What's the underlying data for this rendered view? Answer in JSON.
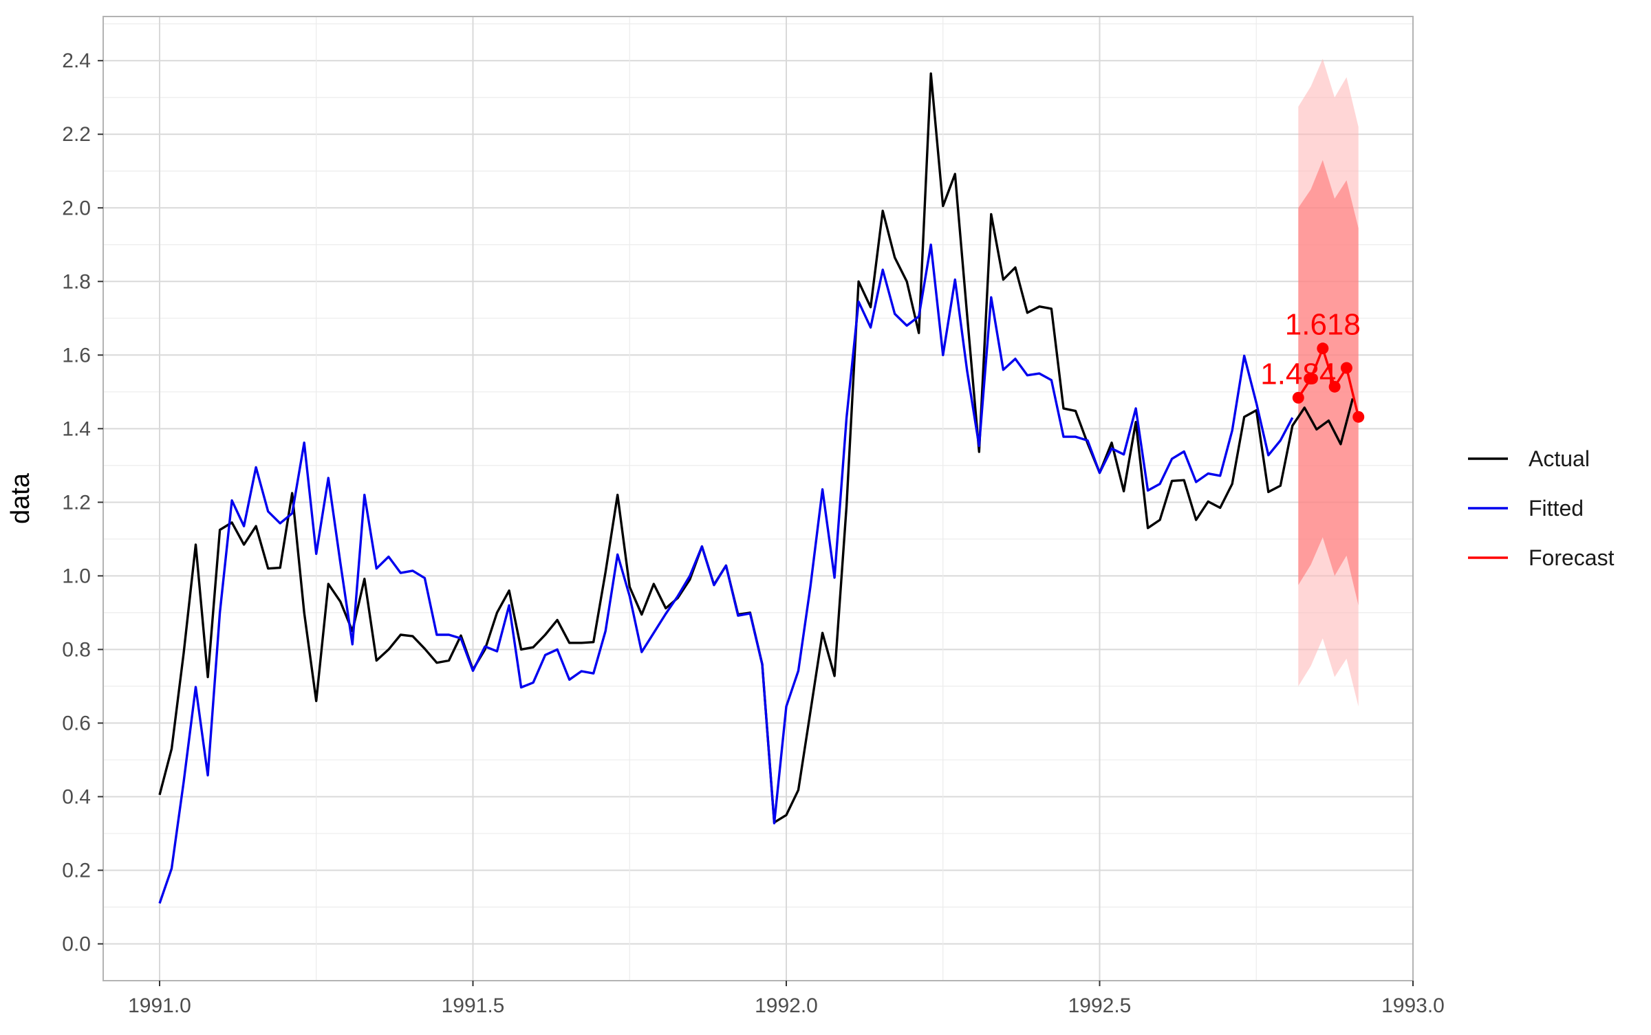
{
  "chart_data": {
    "type": "line",
    "title": "",
    "xlabel": "",
    "ylabel": "data",
    "xlim": [
      1990.91,
      1993.0
    ],
    "ylim": [
      -0.1,
      2.52
    ],
    "x_ticks": [
      1991.0,
      1991.5,
      1992.0,
      1992.5,
      1993.0
    ],
    "x_tick_labels": [
      "1991.0",
      "1991.5",
      "1992.0",
      "1992.5",
      "1993.0"
    ],
    "y_ticks": [
      0.0,
      0.2,
      0.4,
      0.6,
      0.8,
      1.0,
      1.2,
      1.4,
      1.6,
      1.8,
      2.0,
      2.2,
      2.4
    ],
    "y_tick_labels": [
      "0.0",
      "0.2",
      "0.4",
      "0.6",
      "0.8",
      "1.0",
      "1.2",
      "1.4",
      "1.6",
      "1.8",
      "2.0",
      "2.2",
      "2.4"
    ],
    "grid": true,
    "legend_position": "right",
    "x_start": 1991.0,
    "x_step": 0.019231,
    "series": [
      {
        "name": "Actual",
        "color": "#000000",
        "values": [
          0.405,
          0.53,
          0.79,
          1.085,
          0.725,
          1.125,
          1.145,
          1.085,
          1.135,
          1.02,
          1.022,
          1.225,
          0.9,
          0.66,
          0.978,
          0.93,
          0.85,
          0.992,
          0.77,
          0.8,
          0.84,
          0.836,
          0.802,
          0.764,
          0.77,
          0.838,
          0.745,
          0.8,
          0.9,
          0.96,
          0.8,
          0.806,
          0.84,
          0.88,
          0.818,
          0.818,
          0.82,
          1.01,
          1.22,
          0.97,
          0.895,
          0.978,
          0.912,
          0.94,
          0.99,
          1.08,
          0.976,
          1.028,
          0.895,
          0.9,
          0.76,
          0.33,
          0.35,
          0.418,
          0.63,
          0.845,
          0.728,
          1.19,
          1.8,
          1.73,
          1.992,
          1.865,
          1.8,
          1.66,
          2.365,
          2.005,
          2.092,
          1.71,
          1.337,
          1.983,
          1.805,
          1.838,
          1.715,
          1.732,
          1.726,
          1.455,
          1.448,
          1.36,
          1.28,
          1.362,
          1.23,
          1.418,
          1.13,
          1.152,
          1.258,
          1.26,
          1.152,
          1.202,
          1.185,
          1.25,
          1.432,
          1.45,
          1.228,
          1.245,
          1.408,
          1.457,
          1.398,
          1.422,
          1.358,
          1.482
        ]
      },
      {
        "name": "Fitted",
        "color": "#0000ee",
        "values": [
          0.11,
          0.205,
          0.44,
          0.698,
          0.458,
          0.9,
          1.205,
          1.135,
          1.295,
          1.175,
          1.143,
          1.17,
          1.362,
          1.06,
          1.266,
          1.035,
          0.814,
          1.22,
          1.02,
          1.052,
          1.008,
          1.014,
          0.994,
          0.84,
          0.84,
          0.83,
          0.742,
          0.808,
          0.795,
          0.92,
          0.697,
          0.71,
          0.785,
          0.8,
          0.718,
          0.741,
          0.735,
          0.85,
          1.058,
          0.945,
          0.793,
          0.845,
          0.897,
          0.945,
          1.0,
          1.08,
          0.975,
          1.028,
          0.892,
          0.898,
          0.76,
          0.328,
          0.645,
          0.742,
          0.97,
          1.235,
          0.995,
          1.43,
          1.745,
          1.675,
          1.832,
          1.712,
          1.68,
          1.705,
          1.9,
          1.6,
          1.805,
          1.558,
          1.353,
          1.757,
          1.56,
          1.59,
          1.545,
          1.55,
          1.532,
          1.378,
          1.378,
          1.368,
          1.28,
          1.346,
          1.33,
          1.455,
          1.232,
          1.25,
          1.318,
          1.338,
          1.255,
          1.278,
          1.272,
          1.395,
          1.598,
          1.47,
          1.328,
          1.368,
          1.43
        ]
      }
    ],
    "forecast": {
      "name": "Forecast",
      "color": "#ff0000",
      "x": [
        1992.817,
        1992.837,
        1992.856,
        1992.875,
        1992.894,
        1992.913
      ],
      "values": [
        1.484,
        1.536,
        1.618,
        1.514,
        1.565,
        1.432
      ],
      "lower80": [
        0.975,
        1.03,
        1.105,
        1.0,
        1.055,
        0.92
      ],
      "upper80": [
        2.0,
        2.05,
        2.13,
        2.025,
        2.075,
        1.945
      ],
      "lower95": [
        0.7,
        0.755,
        0.83,
        0.725,
        0.775,
        0.645
      ],
      "upper95": [
        2.275,
        2.33,
        2.405,
        2.3,
        2.355,
        2.22
      ],
      "band_color_80": "#ff6e6e",
      "band_color_95": "#ffb4b4"
    },
    "annotations": [
      {
        "text": "1.484",
        "x": 1992.817,
        "y": 1.484,
        "color": "#ff0000"
      },
      {
        "text": "1.618",
        "x": 1992.856,
        "y": 1.618,
        "color": "#ff0000"
      }
    ],
    "legend": [
      {
        "label": "Actual",
        "color": "#000000"
      },
      {
        "label": "Fitted",
        "color": "#0000ee"
      },
      {
        "label": "Forecast",
        "color": "#ff0000"
      }
    ]
  }
}
